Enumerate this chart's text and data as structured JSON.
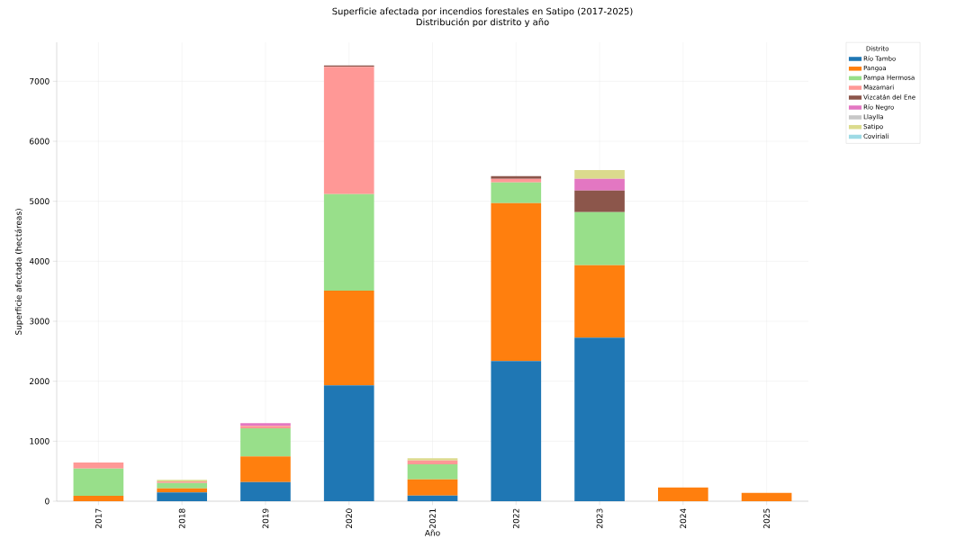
{
  "chart_data": {
    "type": "bar",
    "stacked": true,
    "title": "Superficie afectada por incendios forestales en Satipo (2017-2025)",
    "subtitle": "Distribución por distrito y año",
    "xlabel": "Año",
    "ylabel": "Superficie afectada (hectáreas)",
    "legend_title": "Distrito",
    "legend": "right",
    "grid": true,
    "categories": [
      "2017",
      "2018",
      "2019",
      "2020",
      "2021",
      "2022",
      "2023",
      "2024",
      "2025"
    ],
    "ylim": [
      0,
      7650
    ],
    "yticks": [
      0,
      1000,
      2000,
      3000,
      4000,
      5000,
      6000,
      7000
    ],
    "series": [
      {
        "name": "Río Tambo",
        "color": "#1f77b4",
        "values": [
          0,
          145,
          320,
          1930,
          95,
          2335,
          2725,
          0,
          0
        ]
      },
      {
        "name": "Pangoa",
        "color": "#ff7f0e",
        "values": [
          90,
          70,
          425,
          1580,
          270,
          2635,
          1210,
          230,
          140
        ]
      },
      {
        "name": "Pampa Hermosa",
        "color": "#98df8a",
        "values": [
          455,
          90,
          470,
          1610,
          250,
          345,
          885,
          0,
          0
        ]
      },
      {
        "name": "Mazamari",
        "color": "#ff9896",
        "values": [
          100,
          25,
          40,
          2120,
          65,
          60,
          0,
          0,
          0
        ]
      },
      {
        "name": "Vizcatán del Ene",
        "color": "#8c564b",
        "values": [
          0,
          0,
          0,
          25,
          0,
          45,
          360,
          0,
          0
        ]
      },
      {
        "name": "Río Negro",
        "color": "#e377c2",
        "values": [
          0,
          0,
          45,
          0,
          0,
          0,
          195,
          0,
          0
        ]
      },
      {
        "name": "Llaylla",
        "color": "#c7c7c7",
        "values": [
          0,
          0,
          0,
          0,
          0,
          0,
          0,
          0,
          0
        ]
      },
      {
        "name": "Satipo",
        "color": "#dbdb8d",
        "values": [
          0,
          25,
          0,
          0,
          35,
          0,
          145,
          0,
          0
        ]
      },
      {
        "name": "Coviriali",
        "color": "#9edae5",
        "values": [
          0,
          0,
          0,
          0,
          0,
          0,
          0,
          0,
          0
        ]
      }
    ]
  }
}
